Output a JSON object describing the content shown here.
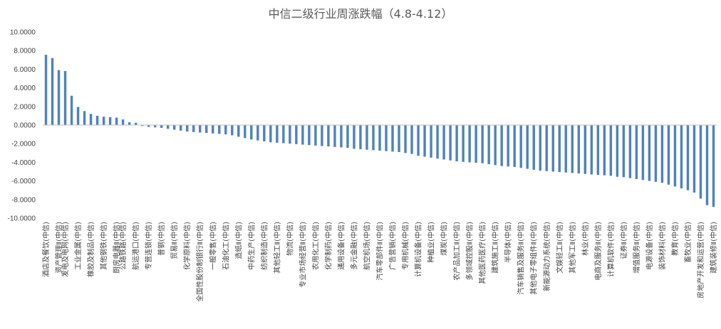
{
  "chart_data": {
    "type": "bar",
    "title": "中信二级行业周涨跌幅（4.8-4.12）",
    "xlabel": "",
    "ylabel": "",
    "ylim": [
      -10,
      10
    ],
    "yticks": [
      "10.0000",
      "8.0000",
      "6.0000",
      "4.0000",
      "2.0000",
      "0.0000",
      "-2.0000",
      "-4.0000",
      "-6.0000",
      "-8.0000",
      "-10.0000"
    ],
    "ytick_values": [
      10,
      8,
      6,
      4,
      2,
      0,
      -2,
      -4,
      -6,
      -8,
      -10
    ],
    "grid": false,
    "bar_color": "#4f81bd",
    "label_every": 2,
    "categories": [
      "酒店及餐饮(中信)",
      "",
      "资产管理Ⅱ(中信)",
      "发电及电网(中信)",
      "",
      "工业金属(中信)",
      "",
      "橡胶及制品(中信)",
      "",
      "其他钢铁(中信)",
      "",
      "厨房电器Ⅱ(中信)",
      "公路铁路(中信)",
      "",
      "航运港口(中信)",
      "",
      "专营连锁(中信)",
      "",
      "普钢(中信)",
      "",
      "贸易Ⅱ(中信)",
      "",
      "化学原料(中信)",
      "",
      "全国性股份制银行Ⅱ(中信)",
      "",
      "一般零售(中信)",
      "",
      "石油化工(中信)",
      "",
      "造纸Ⅱ(中信)",
      "",
      "中药生产(中信)",
      "",
      "纺织制造(中信)",
      "",
      "其他轻工Ⅱ(中信)",
      "",
      "物流(中信)",
      "",
      "专业市场经营Ⅱ(中信)",
      "",
      "农用化工(中信)",
      "",
      "化学制药(中信)",
      "",
      "通用设备(中信)",
      "",
      "多元金融(中信)",
      "",
      "航空机场(中信)",
      "",
      "汽车零部件Ⅱ(中信)",
      "",
      "广告营销(中信)",
      "",
      "专用机械(中信)",
      "",
      "计算机设备(中信)",
      "",
      "种植业(中信)",
      "",
      "煤炭(中信)",
      "",
      "农产品加工Ⅱ(中信)",
      "",
      "多领域控股Ⅱ(中信)",
      "",
      "其他医药医疗(中信)",
      "",
      "建筑施工Ⅱ(中信)",
      "",
      "半导体(中信)",
      "",
      "汽车销售及服务Ⅱ(中信)",
      "",
      "其他电子零组件Ⅱ(中信)",
      "",
      "新能源动力系统(中信)",
      "",
      "文娱轻工Ⅱ(中信)",
      "",
      "其他军工Ⅱ(中信)",
      "",
      "林业(中信)",
      "",
      "电商及服务Ⅱ(中信)",
      "",
      "计算机软件(中信)",
      "",
      "证券Ⅱ(中信)",
      "",
      "增值服务Ⅱ(中信)",
      "",
      "电源设备(中信)",
      "",
      "装饰材料(中信)",
      "",
      "教育(中信)",
      "",
      "畜牧业(中信)",
      "",
      "房地产开发和运营(中信)",
      "",
      "建筑装修Ⅱ(中信)"
    ],
    "values": [
      7.55,
      7.2,
      5.9,
      5.8,
      3.15,
      1.95,
      1.5,
      1.2,
      1.0,
      0.9,
      0.85,
      0.8,
      0.6,
      0.3,
      0.25,
      -0.1,
      -0.2,
      -0.25,
      -0.3,
      -0.4,
      -0.5,
      -0.6,
      -0.7,
      -0.75,
      -0.8,
      -0.85,
      -0.9,
      -0.95,
      -1.0,
      -1.1,
      -1.25,
      -1.4,
      -1.55,
      -1.65,
      -1.75,
      -1.85,
      -1.9,
      -1.95,
      -2.0,
      -2.05,
      -2.1,
      -2.15,
      -2.2,
      -2.25,
      -2.3,
      -2.35,
      -2.4,
      -2.45,
      -2.55,
      -2.6,
      -2.65,
      -2.7,
      -2.75,
      -2.8,
      -2.85,
      -2.9,
      -3.0,
      -3.1,
      -3.3,
      -3.4,
      -3.5,
      -3.6,
      -3.7,
      -3.8,
      -3.9,
      -3.95,
      -4.0,
      -4.05,
      -4.1,
      -4.2,
      -4.3,
      -4.4,
      -4.45,
      -4.5,
      -4.6,
      -4.7,
      -4.8,
      -4.9,
      -4.95,
      -5.0,
      -5.05,
      -5.1,
      -5.15,
      -5.2,
      -5.25,
      -5.3,
      -5.35,
      -5.4,
      -5.45,
      -5.55,
      -5.6,
      -5.7,
      -5.8,
      -5.9,
      -6.0,
      -6.1,
      -6.2,
      -6.4,
      -6.6,
      -6.8,
      -7.0,
      -7.25,
      -7.9,
      -8.6,
      -8.8
    ]
  }
}
